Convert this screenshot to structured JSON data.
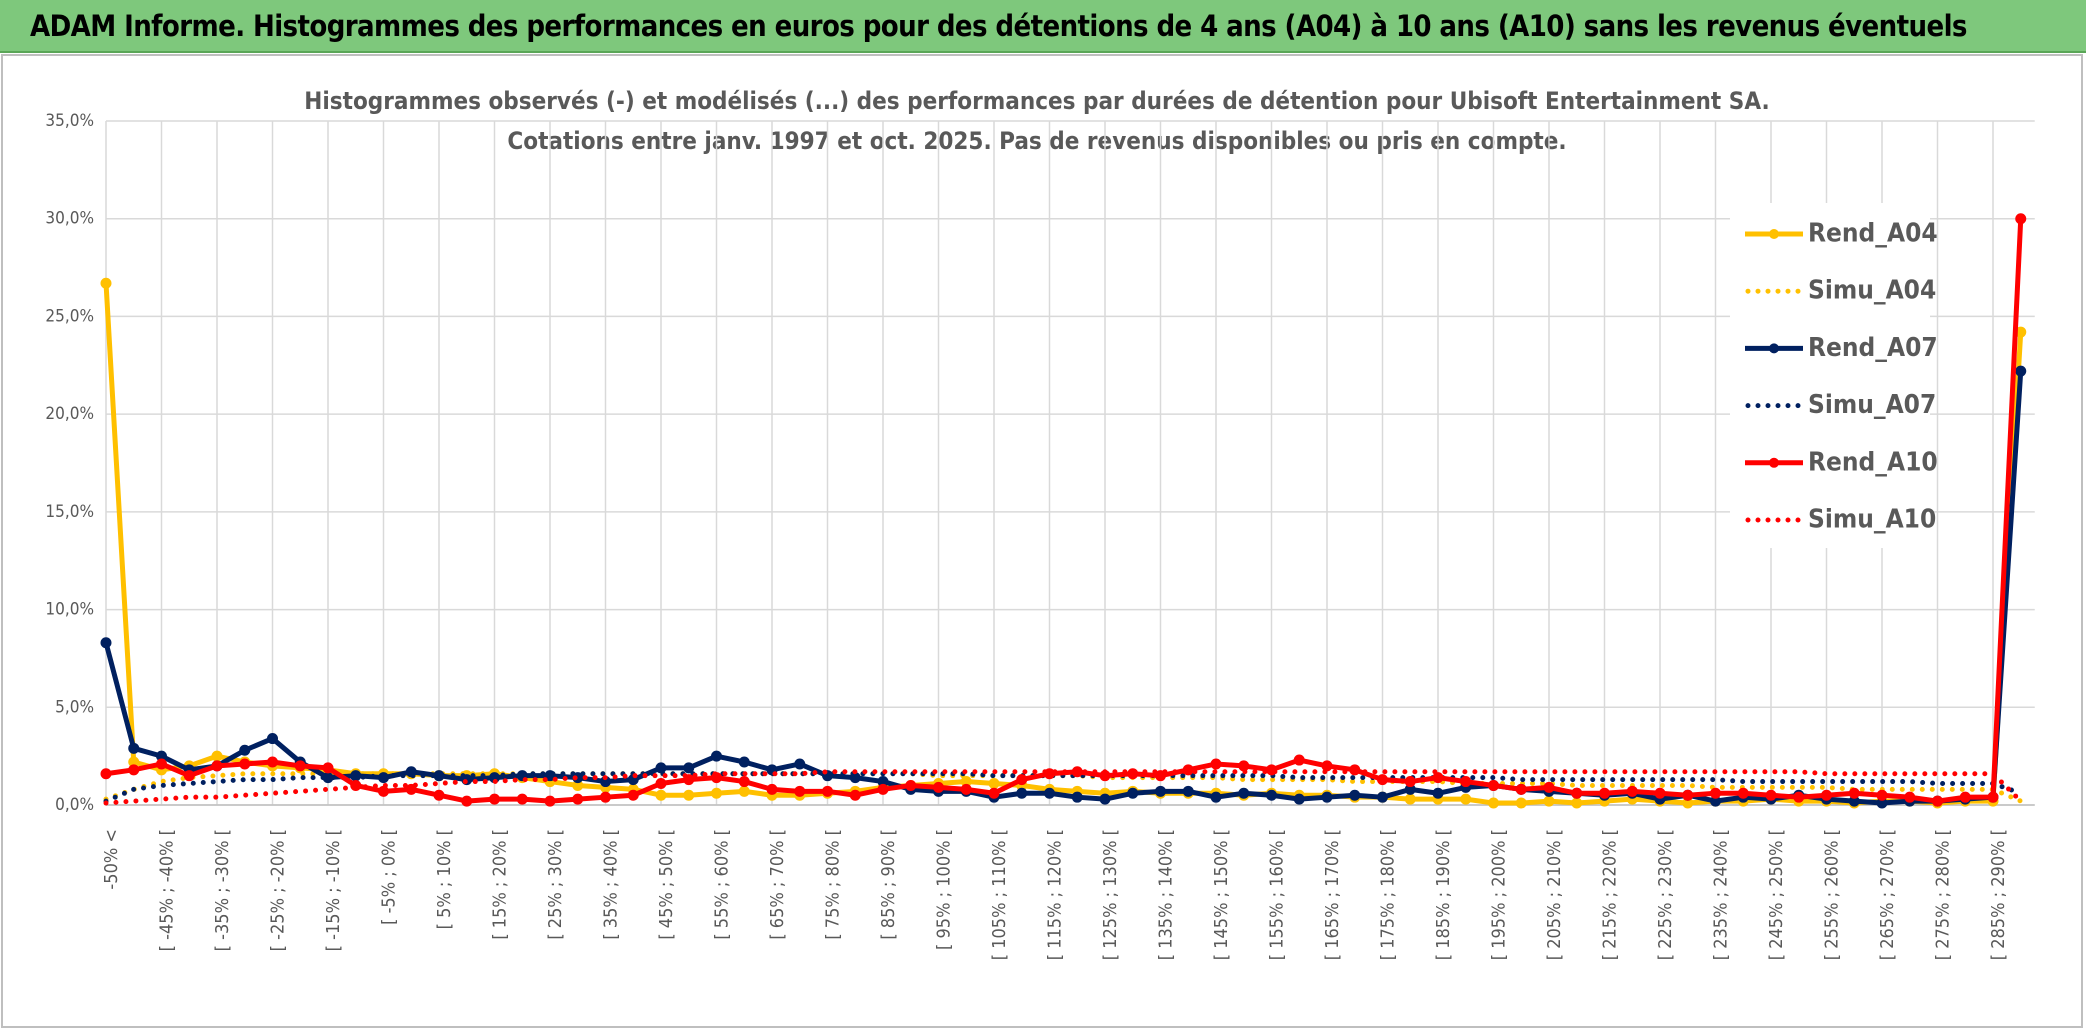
{
  "header": {
    "title": "ADAM Informe. Histogrammes des performances en euros pour des détentions de 4 ans (A04) à 10 ans (A10) sans les revenus éventuels"
  },
  "chart_data": {
    "type": "line",
    "title": "Histogrammes observés (-) et modélisés (...) des performances par durées de détention pour Ubisoft Entertainment SA.",
    "subtitle": "Cotations entre janv. 1997 et oct. 2025. Pas de revenus disponibles ou pris en compte.",
    "categories": [
      "-50% <",
      null,
      "[ -45% ; -40% [",
      null,
      "[ -35% ; -30% [",
      null,
      "[ -25% ; -20% [",
      null,
      "[ -15% ; -10% [",
      null,
      "[ -5% ; 0% [",
      null,
      "[ 5% ; 10% [",
      null,
      "[ 15% ; 20% [",
      null,
      "[ 25% ; 30% [",
      null,
      "[ 35% ; 40% [",
      null,
      "[ 45% ; 50% [",
      null,
      "[ 55% ; 60% [",
      null,
      "[ 65% ; 70% [",
      null,
      "[ 75% ; 80% [",
      null,
      "[ 85% ; 90% [",
      null,
      "[ 95% ; 100% [",
      null,
      "[ 105% ; 110% [",
      null,
      "[ 115% ; 120% [",
      null,
      "[ 125% ; 130% [",
      null,
      "[ 135% ; 140% [",
      null,
      "[ 145% ; 150% [",
      null,
      "[ 155% ; 160% [",
      null,
      "[ 165% ; 170% [",
      null,
      "[ 175% ; 180% [",
      null,
      "[ 185% ; 190% [",
      null,
      "[ 195% ; 200% [",
      null,
      "[ 205% ; 210% [",
      null,
      "[ 215% ; 220% [",
      null,
      "[ 225% ; 230% [",
      null,
      "[ 235% ; 240% [",
      null,
      "[ 245% ; 250% [",
      null,
      "[ 255% ; 260% [",
      null,
      "[ 265% ; 270% [",
      null,
      "[ 275% ; 280% [",
      null,
      "[ 285% ; 290% [",
      null
    ],
    "series": [
      {
        "name": "Rend_A04",
        "color": "#ffc000",
        "style": "solid",
        "markers": true,
        "values": [
          26.7,
          2.2,
          1.8,
          2.0,
          2.5,
          2.2,
          2.0,
          1.9,
          1.8,
          1.6,
          1.6,
          1.6,
          1.5,
          1.5,
          1.6,
          1.4,
          1.2,
          1.0,
          0.9,
          0.8,
          0.5,
          0.5,
          0.6,
          0.7,
          0.5,
          0.5,
          0.6,
          0.7,
          0.9,
          1.0,
          1.1,
          1.2,
          1.1,
          1.0,
          0.8,
          0.7,
          0.6,
          0.7,
          0.6,
          0.6,
          0.6,
          0.5,
          0.6,
          0.5,
          0.5,
          0.4,
          0.4,
          0.3,
          0.3,
          0.3,
          0.1,
          0.1,
          0.2,
          0.1,
          0.2,
          0.3,
          0.2,
          0.1,
          0.2,
          0.2,
          0.3,
          0.2,
          0.2,
          0.1,
          0.2,
          0.2,
          0.1,
          0.2,
          0.2,
          24.2
        ]
      },
      {
        "name": "Simu_A04",
        "color": "#ffc000",
        "style": "dotted",
        "markers": false,
        "values": [
          0.3,
          0.8,
          1.2,
          1.4,
          1.5,
          1.6,
          1.6,
          1.6,
          1.6,
          1.6,
          1.6,
          1.6,
          1.6,
          1.6,
          1.6,
          1.6,
          1.6,
          1.6,
          1.6,
          1.6,
          1.6,
          1.6,
          1.6,
          1.6,
          1.6,
          1.6,
          1.6,
          1.6,
          1.6,
          1.6,
          1.5,
          1.5,
          1.5,
          1.5,
          1.5,
          1.5,
          1.4,
          1.4,
          1.4,
          1.4,
          1.4,
          1.3,
          1.3,
          1.3,
          1.3,
          1.2,
          1.2,
          1.2,
          1.2,
          1.1,
          1.1,
          1.1,
          1.1,
          1.0,
          1.0,
          1.0,
          1.0,
          1.0,
          0.9,
          0.9,
          0.9,
          0.9,
          0.9,
          0.8,
          0.8,
          0.8,
          0.8,
          0.8,
          0.8,
          0.2
        ]
      },
      {
        "name": "Rend_A07",
        "color": "#002060",
        "style": "solid",
        "markers": true,
        "values": [
          8.3,
          2.9,
          2.5,
          1.8,
          2.0,
          2.8,
          3.4,
          2.2,
          1.4,
          1.5,
          1.4,
          1.7,
          1.5,
          1.3,
          1.4,
          1.5,
          1.5,
          1.4,
          1.2,
          1.3,
          1.9,
          1.9,
          2.5,
          2.2,
          1.8,
          2.1,
          1.5,
          1.4,
          1.2,
          0.8,
          0.7,
          0.7,
          0.4,
          0.6,
          0.6,
          0.4,
          0.3,
          0.6,
          0.7,
          0.7,
          0.4,
          0.6,
          0.5,
          0.3,
          0.4,
          0.5,
          0.4,
          0.8,
          0.6,
          0.9,
          1.0,
          0.8,
          0.7,
          0.6,
          0.5,
          0.6,
          0.3,
          0.5,
          0.2,
          0.4,
          0.3,
          0.5,
          0.3,
          0.2,
          0.1,
          0.2,
          0.2,
          0.3,
          0.4,
          22.2
        ]
      },
      {
        "name": "Simu_A07",
        "color": "#002060",
        "style": "dotted",
        "markers": false,
        "values": [
          0.2,
          0.8,
          1.0,
          1.1,
          1.2,
          1.3,
          1.3,
          1.4,
          1.4,
          1.4,
          1.5,
          1.5,
          1.5,
          1.5,
          1.5,
          1.6,
          1.6,
          1.6,
          1.6,
          1.6,
          1.6,
          1.6,
          1.6,
          1.6,
          1.6,
          1.6,
          1.6,
          1.6,
          1.6,
          1.6,
          1.6,
          1.6,
          1.5,
          1.5,
          1.5,
          1.5,
          1.5,
          1.5,
          1.5,
          1.5,
          1.5,
          1.5,
          1.5,
          1.4,
          1.4,
          1.4,
          1.4,
          1.4,
          1.4,
          1.4,
          1.4,
          1.3,
          1.3,
          1.3,
          1.3,
          1.3,
          1.3,
          1.3,
          1.3,
          1.2,
          1.2,
          1.2,
          1.2,
          1.2,
          1.2,
          1.2,
          1.1,
          1.1,
          1.1,
          0.6
        ]
      },
      {
        "name": "Rend_A10",
        "color": "#ff0000",
        "style": "solid",
        "markers": true,
        "values": [
          1.6,
          1.8,
          2.1,
          1.5,
          2.0,
          2.1,
          2.2,
          2.0,
          1.9,
          1.0,
          0.7,
          0.8,
          0.5,
          0.2,
          0.3,
          0.3,
          0.2,
          0.3,
          0.4,
          0.5,
          1.1,
          1.3,
          1.4,
          1.2,
          0.8,
          0.7,
          0.7,
          0.5,
          0.8,
          1.0,
          0.9,
          0.8,
          0.6,
          1.3,
          1.6,
          1.7,
          1.5,
          1.6,
          1.5,
          1.8,
          2.1,
          2.0,
          1.8,
          2.3,
          2.0,
          1.8,
          1.3,
          1.2,
          1.4,
          1.2,
          1.0,
          0.8,
          0.9,
          0.6,
          0.6,
          0.7,
          0.6,
          0.5,
          0.6,
          0.6,
          0.5,
          0.4,
          0.5,
          0.6,
          0.5,
          0.4,
          0.2,
          0.4,
          0.4,
          30.0
        ]
      },
      {
        "name": "Simu_A10",
        "color": "#ff0000",
        "style": "dotted",
        "markers": false,
        "values": [
          0.1,
          0.2,
          0.3,
          0.4,
          0.4,
          0.5,
          0.6,
          0.7,
          0.8,
          0.9,
          1.0,
          1.0,
          1.1,
          1.2,
          1.2,
          1.3,
          1.3,
          1.4,
          1.4,
          1.5,
          1.5,
          1.5,
          1.6,
          1.6,
          1.6,
          1.6,
          1.7,
          1.7,
          1.7,
          1.7,
          1.7,
          1.7,
          1.7,
          1.7,
          1.7,
          1.7,
          1.7,
          1.7,
          1.7,
          1.7,
          1.7,
          1.7,
          1.7,
          1.7,
          1.7,
          1.7,
          1.7,
          1.7,
          1.7,
          1.7,
          1.7,
          1.7,
          1.7,
          1.7,
          1.7,
          1.7,
          1.7,
          1.7,
          1.7,
          1.7,
          1.7,
          1.7,
          1.6,
          1.6,
          1.6,
          1.6,
          1.6,
          1.6,
          1.6,
          0.2
        ]
      }
    ],
    "ylim": [
      0,
      35
    ],
    "yticks": [
      {
        "value": 0,
        "label": "0,0%"
      },
      {
        "value": 5,
        "label": "5,0%"
      },
      {
        "value": 10,
        "label": "10,0%"
      },
      {
        "value": 15,
        "label": "15,0%"
      },
      {
        "value": 20,
        "label": "20,0%"
      },
      {
        "value": 25,
        "label": "25,0%"
      },
      {
        "value": 30,
        "label": "30,0%"
      },
      {
        "value": 35,
        "label": "35,0%"
      }
    ],
    "grid": true,
    "legend": "right"
  }
}
